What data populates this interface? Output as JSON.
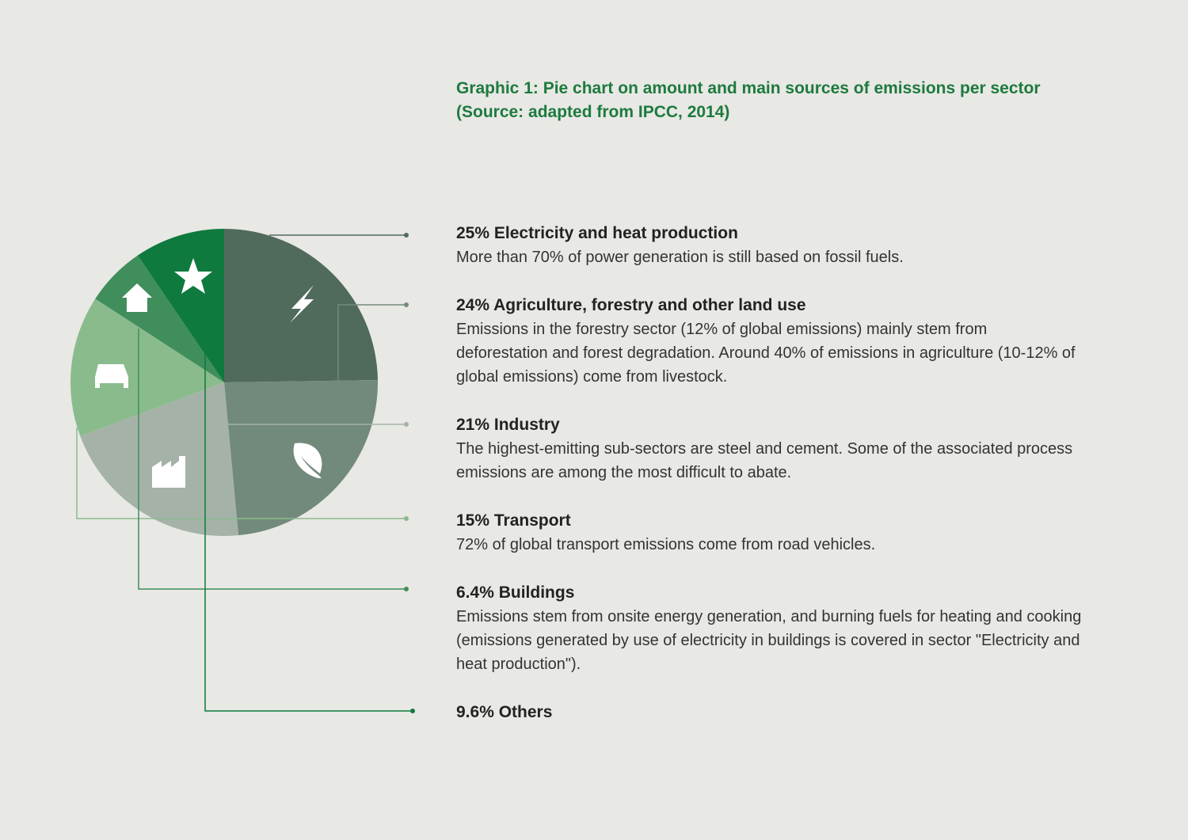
{
  "chart_data": {
    "type": "pie",
    "title": "Graphic 1: Pie chart on amount and main sources of emissions per sector",
    "subtitle": "(Source: adapted from IPCC, 2014)",
    "categories": [
      "Electricity and heat production",
      "Agriculture, forestry and other land use",
      "Industry",
      "Transport",
      "Buildings",
      "Others"
    ],
    "values": [
      25,
      24,
      21,
      15,
      6.4,
      9.6
    ],
    "value_labels": [
      "25%",
      "24%",
      "21%",
      "15%",
      "6.4%",
      "9.6%"
    ],
    "colors": [
      "#506a5c",
      "#728a7b",
      "#a5b2a8",
      "#8abb8d",
      "#3f8e5b",
      "#0e7a3d"
    ],
    "descriptions": [
      "More than 70% of power generation is still based on fossil fuels.",
      "Emissions in the forestry sector (12% of global emissions) mainly stem from deforestation and forest degradation. Around 40% of emissions in agriculture (10-12% of global emissions) come from livestock.",
      "The highest-emitting sub-sectors are steel and cement. Some of the associated process emissions are among the most difficult to abate.",
      "72% of global transport emissions come from road vehicles.",
      "Emissions stem from onsite energy generation, and burning fuels for heating and cooking (emissions generated by use of electricity in buildings is covered in sector \"Electricity and heat production\").",
      null
    ]
  }
}
